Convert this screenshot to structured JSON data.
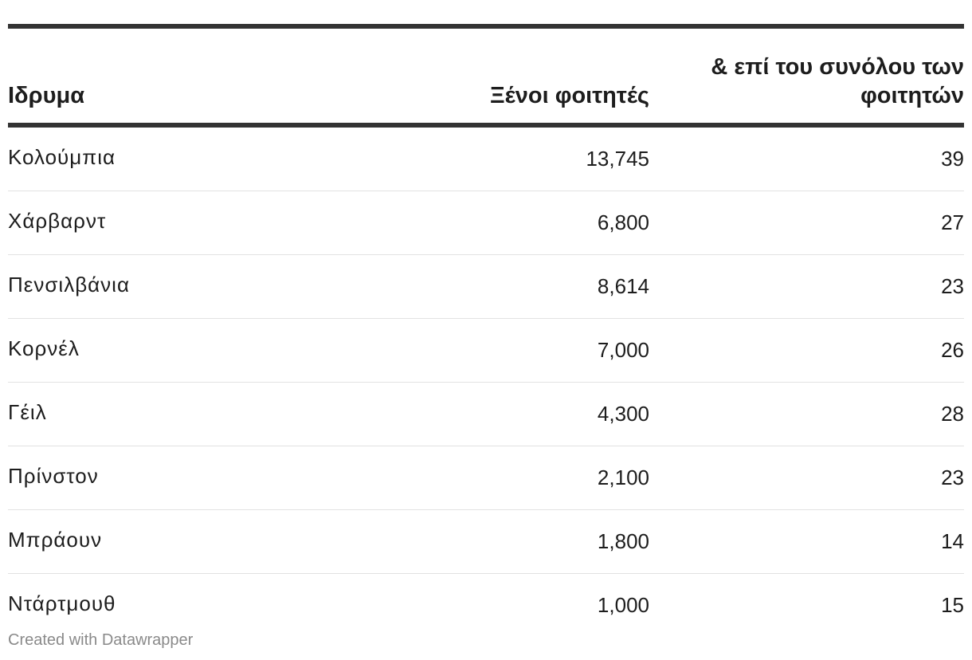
{
  "chart_data": {
    "type": "table",
    "columns": [
      "Ιδρυμα",
      "Ξένοι φοιτητές",
      "& επί του συνόλου των φοιτητών"
    ],
    "rows": [
      {
        "institution": "Κολούμπια",
        "foreign_students": "13,745",
        "share": "39"
      },
      {
        "institution": "Χάρβαρντ",
        "foreign_students": "6,800",
        "share": "27"
      },
      {
        "institution": "Πενσιλβάνια",
        "foreign_students": "8,614",
        "share": "23"
      },
      {
        "institution": "Κορνέλ",
        "foreign_students": "7,000",
        "share": "26"
      },
      {
        "institution": "Γέιλ",
        "foreign_students": "4,300",
        "share": "28"
      },
      {
        "institution": "Πρίνστον",
        "foreign_students": "2,100",
        "share": "23"
      },
      {
        "institution": "Μπράουν",
        "foreign_students": "1,800",
        "share": "14"
      },
      {
        "institution": "Ντάρτμουθ",
        "foreign_students": "1,000",
        "share": "15"
      }
    ]
  },
  "footer": {
    "credit": "Created with Datawrapper"
  }
}
